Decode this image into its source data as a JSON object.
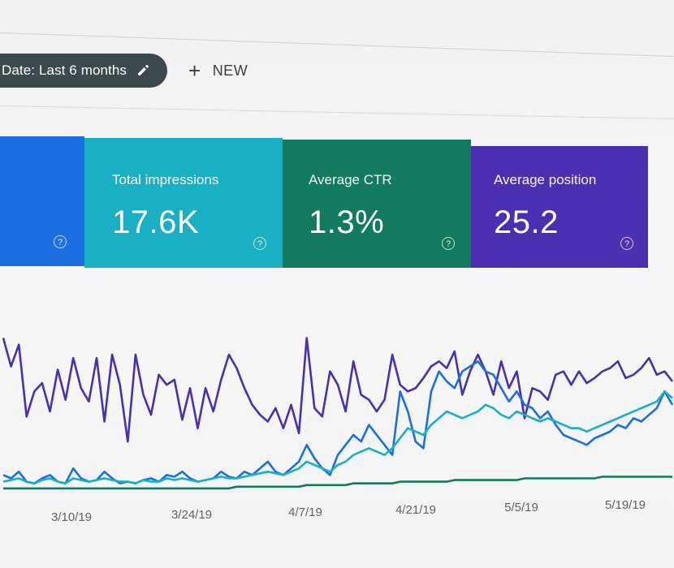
{
  "filter": {
    "date_label": "Date: Last 6 months",
    "new_label": "NEW"
  },
  "cards": [
    {
      "id": "clicks",
      "title": "",
      "value": "",
      "color": "#1b6fe0"
    },
    {
      "id": "impressions",
      "title": "Total impressions",
      "value": "17.6K",
      "color": "#1ab0c4"
    },
    {
      "id": "ctr",
      "title": "Average CTR",
      "value": "1.3%",
      "color": "#127a5e"
    },
    {
      "id": "position",
      "title": "Average position",
      "value": "25.2",
      "color": "#4a2fb0"
    }
  ],
  "chart_data": {
    "type": "line",
    "x_ticks": [
      "3/10/19",
      "3/24/19",
      "4/7/19",
      "4/21/19",
      "5/5/19",
      "5/19/19"
    ],
    "series": [
      {
        "color": "#4a2fb0",
        "values": [
          92,
          75,
          88,
          45,
          60,
          65,
          48,
          73,
          55,
          80,
          62,
          54,
          80,
          42,
          82,
          64,
          30,
          82,
          58,
          46,
          70,
          64,
          67,
          43,
          62,
          38,
          62,
          48,
          67,
          82,
          74,
          62,
          52,
          46,
          42,
          50,
          38,
          52,
          35,
          92,
          50,
          45,
          72,
          64,
          48,
          78,
          58,
          55,
          48,
          55,
          82,
          64,
          60,
          62,
          68,
          75,
          78,
          74,
          84,
          58,
          72,
          82,
          72,
          58,
          78,
          62,
          72,
          44,
          62,
          60,
          55,
          70,
          72,
          64,
          72,
          65,
          68,
          72,
          74,
          78,
          68,
          70,
          74,
          80,
          70,
          72,
          66
        ]
      },
      {
        "color": "#1b6fe0",
        "values": [
          10,
          8,
          12,
          6,
          5,
          8,
          10,
          6,
          5,
          14,
          8,
          6,
          7,
          12,
          8,
          5,
          6,
          5,
          7,
          8,
          6,
          10,
          9,
          12,
          8,
          6,
          7,
          8,
          12,
          9,
          8,
          12,
          10,
          14,
          18,
          12,
          10,
          14,
          18,
          28,
          20,
          14,
          10,
          22,
          28,
          34,
          30,
          40,
          34,
          28,
          22,
          60,
          48,
          30,
          26,
          60,
          72,
          66,
          62,
          72,
          75,
          78,
          72,
          70,
          62,
          54,
          60,
          52,
          50,
          44,
          48,
          40,
          34,
          32,
          30,
          28,
          32,
          34,
          36,
          40,
          38,
          44,
          42,
          46,
          50,
          60,
          52
        ]
      },
      {
        "color": "#1ab0c4",
        "values": [
          6,
          7,
          8,
          6,
          5,
          7,
          8,
          6,
          5,
          8,
          7,
          6,
          7,
          8,
          7,
          6,
          6,
          5,
          7,
          6,
          6,
          8,
          7,
          8,
          7,
          6,
          7,
          8,
          9,
          8,
          8,
          9,
          10,
          11,
          12,
          11,
          10,
          12,
          14,
          18,
          16,
          14,
          12,
          16,
          18,
          22,
          24,
          26,
          24,
          22,
          26,
          32,
          38,
          36,
          34,
          40,
          44,
          48,
          46,
          44,
          46,
          48,
          52,
          50,
          46,
          44,
          48,
          46,
          44,
          42,
          44,
          42,
          40,
          38,
          38,
          36,
          38,
          40,
          42,
          44,
          46,
          48,
          50,
          52,
          54,
          60,
          56
        ]
      },
      {
        "color": "#127a5e",
        "values": [
          2,
          2,
          2,
          2,
          2,
          2,
          2,
          2,
          2,
          2,
          2,
          2,
          2,
          2,
          2,
          2,
          2,
          2,
          2,
          2,
          2,
          2,
          2,
          2,
          2,
          2,
          2,
          2,
          2,
          2,
          3,
          3,
          3,
          3,
          3,
          3,
          3,
          3,
          3,
          4,
          4,
          4,
          4,
          4,
          4,
          5,
          5,
          5,
          5,
          5,
          5,
          6,
          6,
          6,
          6,
          6,
          6,
          6,
          7,
          7,
          7,
          7,
          7,
          7,
          7,
          7,
          7,
          8,
          8,
          8,
          8,
          8,
          8,
          8,
          8,
          8,
          8,
          9,
          9,
          9,
          9,
          9,
          9,
          9,
          9,
          9,
          9
        ]
      }
    ]
  }
}
